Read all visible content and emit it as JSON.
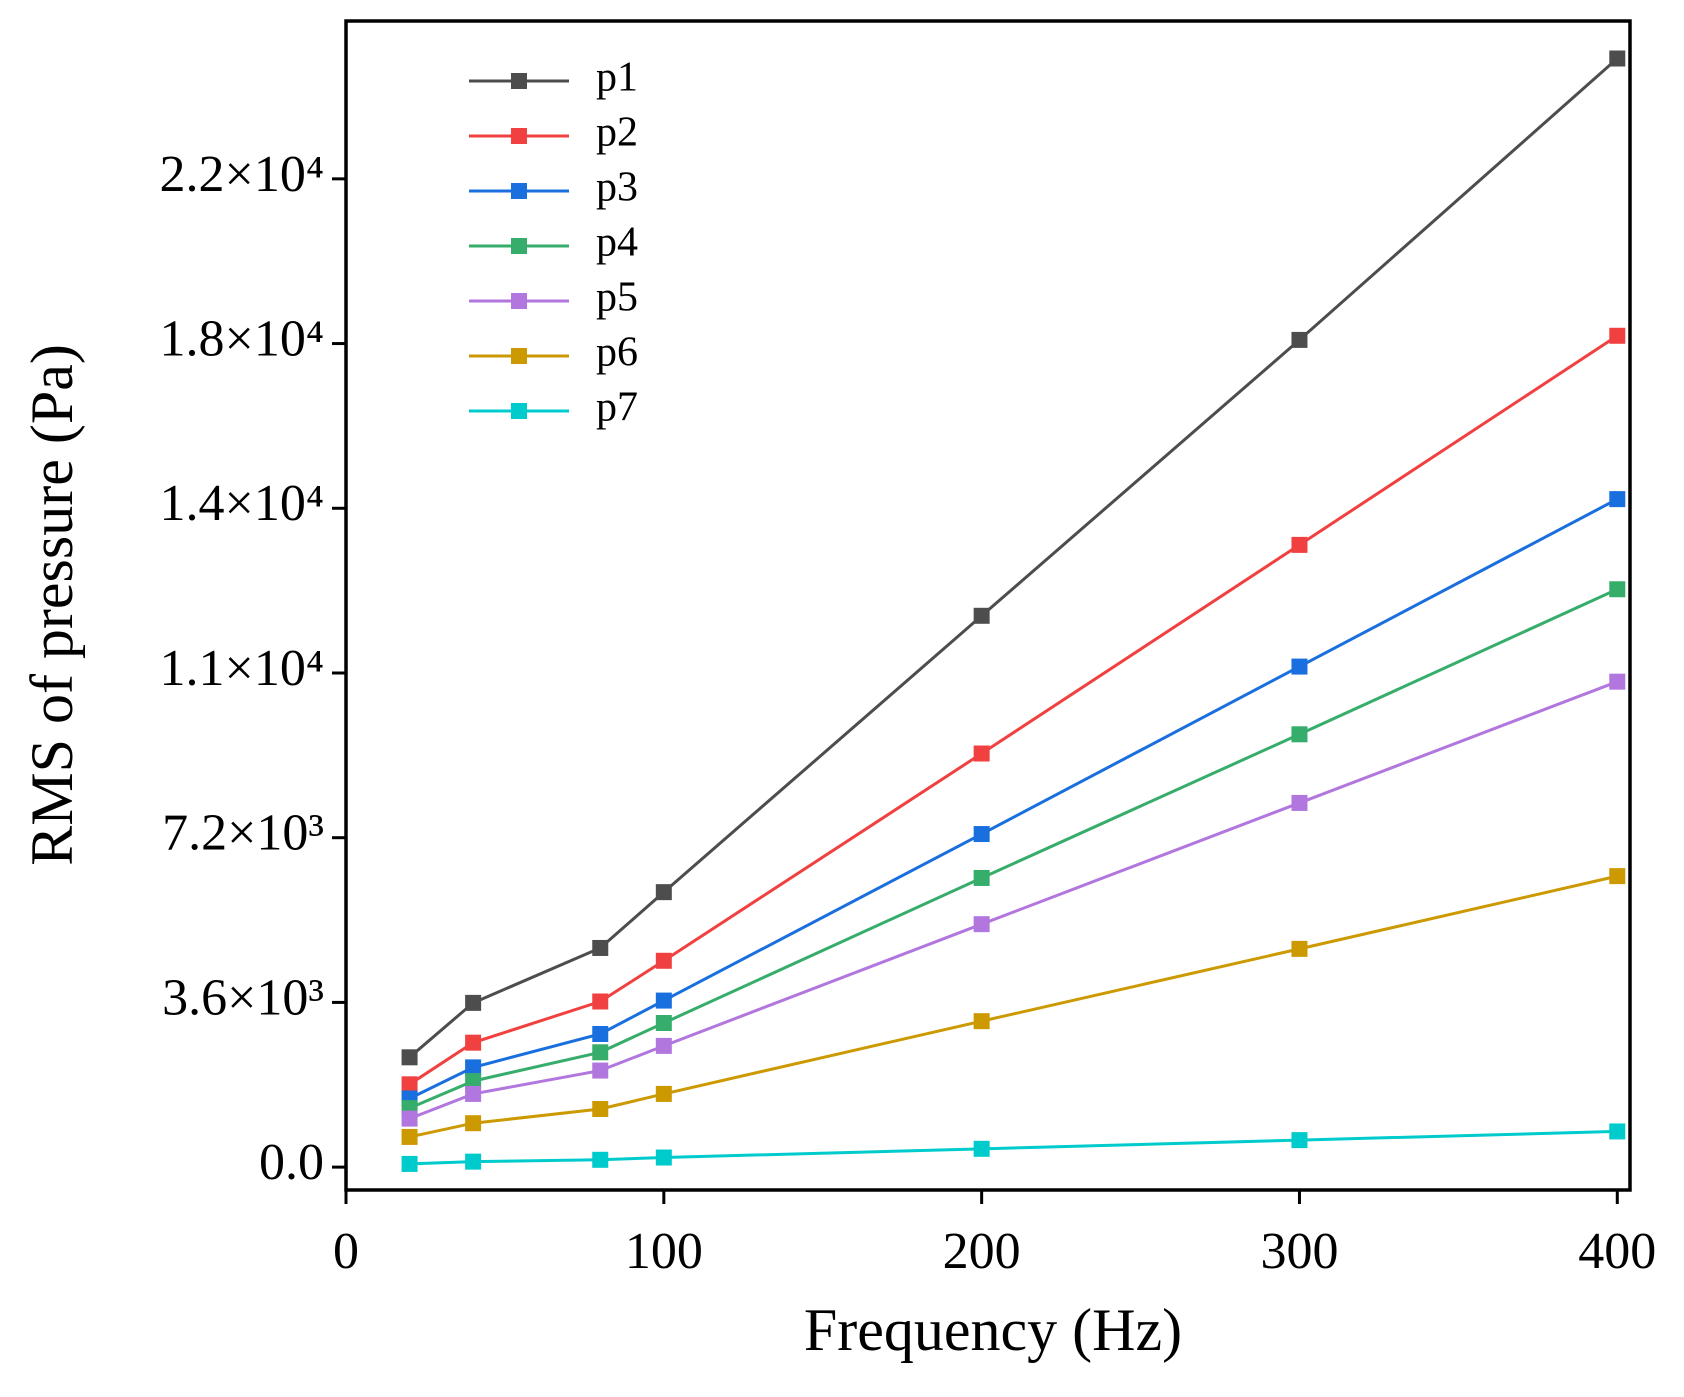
{
  "chart_data": {
    "type": "line",
    "xlabel": "Frequency (Hz)",
    "ylabel": "RMS of pressure (Pa)",
    "x": [
      20,
      40,
      80,
      100,
      200,
      300,
      400
    ],
    "series": [
      {
        "name": "p1",
        "color": "#4d4d4d",
        "values": [
          2400,
          3590,
          4790,
          6010,
          12050,
          18080,
          24230
        ]
      },
      {
        "name": "p2",
        "color": "#f14040",
        "values": [
          1810,
          2720,
          3620,
          4510,
          9040,
          13600,
          18170
        ]
      },
      {
        "name": "p3",
        "color": "#1a6fdf",
        "values": [
          1500,
          2180,
          2910,
          3640,
          7280,
          10940,
          14600
        ]
      },
      {
        "name": "p4",
        "color": "#37ad6b",
        "values": [
          1290,
          1880,
          2510,
          3150,
          6320,
          9460,
          12630
        ]
      },
      {
        "name": "p5",
        "color": "#b177de",
        "values": [
          1060,
          1600,
          2110,
          2650,
          5310,
          7960,
          10610
        ]
      },
      {
        "name": "p6",
        "color": "#cc9900",
        "values": [
          660,
          960,
          1270,
          1600,
          3190,
          4770,
          6360
        ]
      },
      {
        "name": "p7",
        "color": "#00cbcc",
        "values": [
          70,
          120,
          160,
          210,
          400,
          590,
          780
        ]
      }
    ],
    "xlim": [
      0,
      404
    ],
    "xticks": [
      0,
      100,
      200,
      300,
      400
    ],
    "ylim": [
      -500,
      25050
    ],
    "yticks": [
      {
        "value": 0,
        "label": "0.0"
      },
      {
        "value": 3600,
        "label": "3.6×10³"
      },
      {
        "value": 7200,
        "label": "7.2×10³"
      },
      {
        "value": 10800,
        "label": "1.1×10⁴"
      },
      {
        "value": 14400,
        "label": "1.4×10⁴"
      },
      {
        "value": 18000,
        "label": "1.8×10⁴"
      },
      {
        "value": 21600,
        "label": "2.2×10⁴"
      }
    ],
    "legend": "upper left"
  }
}
